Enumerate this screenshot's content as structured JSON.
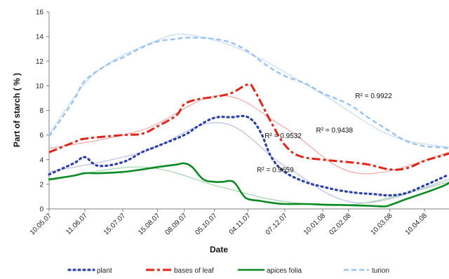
{
  "chart_data": {
    "type": "line",
    "xlabel": "Date",
    "ylabel": "Part of starch ( % )",
    "ylim": [
      0,
      16
    ],
    "y_ticks": [
      0,
      2,
      4,
      6,
      8,
      10,
      12,
      14,
      16
    ],
    "grid": false,
    "legend_position": "bottom",
    "x_tick_labels": [
      "10.05.07",
      "11.06.07",
      "15.07.07",
      "15.08.07",
      "08.09.07",
      "05.10.07",
      "04.11.07",
      "07.12.07",
      "10.01.08",
      "02.02.08",
      "10.03.08",
      "10.04.08"
    ],
    "x_tick_dates": [
      "2007-05-10",
      "2007-06-11",
      "2007-07-15",
      "2007-08-15",
      "2007-09-08",
      "2007-10-05",
      "2007-11-04",
      "2007-12-07",
      "2008-01-10",
      "2008-02-02",
      "2008-03-10",
      "2008-04-10"
    ],
    "x_domain": [
      "2007-05-10",
      "2008-05-02"
    ],
    "series": [
      {
        "name": "plant",
        "color": "#2a3fa8",
        "dash": "dotted",
        "x": [
          "2007-05-10",
          "2007-06-01",
          "2007-06-11",
          "2007-06-23",
          "2007-07-15",
          "2007-08-01",
          "2007-08-15",
          "2007-09-08",
          "2007-09-20",
          "2007-10-05",
          "2007-10-20",
          "2007-11-04",
          "2007-11-15",
          "2007-11-25",
          "2007-12-07",
          "2007-12-25",
          "2008-01-10",
          "2008-01-25",
          "2008-02-10",
          "2008-02-25",
          "2008-03-10",
          "2008-03-25",
          "2008-04-10",
          "2008-04-25",
          "2008-05-02"
        ],
        "values": [
          2.8,
          3.7,
          4.2,
          3.5,
          3.8,
          4.6,
          5.1,
          6.0,
          6.7,
          7.4,
          7.45,
          7.45,
          6.3,
          4.2,
          3.0,
          2.2,
          1.8,
          1.5,
          1.3,
          1.2,
          1.1,
          1.3,
          1.9,
          2.5,
          2.8
        ],
        "trend_r2_label": "R² = 0.9659"
      },
      {
        "name": "bases of leaf",
        "color": "#e02418",
        "dash": "dashdot",
        "x": [
          "2007-05-10",
          "2007-06-01",
          "2007-06-11",
          "2007-07-15",
          "2007-08-01",
          "2007-08-15",
          "2007-09-01",
          "2007-09-08",
          "2007-09-20",
          "2007-10-05",
          "2007-10-20",
          "2007-11-04",
          "2007-11-10",
          "2007-11-25",
          "2007-12-07",
          "2007-12-20",
          "2008-01-10",
          "2008-02-02",
          "2008-02-20",
          "2008-03-10",
          "2008-03-25",
          "2008-04-10",
          "2008-04-25",
          "2008-05-02"
        ],
        "values": [
          4.6,
          5.4,
          5.7,
          6.0,
          6.1,
          6.7,
          7.6,
          8.5,
          8.9,
          9.1,
          9.4,
          10.1,
          9.6,
          7.0,
          5.2,
          4.3,
          4.0,
          3.8,
          3.6,
          3.2,
          3.3,
          3.9,
          4.3,
          4.5
        ],
        "trend_r2_label": "R² = 0.9532"
      },
      {
        "name": "apices folia",
        "color": "#0a8a22",
        "dash": "solid",
        "x": [
          "2007-05-10",
          "2007-06-01",
          "2007-06-11",
          "2007-06-23",
          "2007-07-15",
          "2007-08-01",
          "2007-08-15",
          "2007-09-01",
          "2007-09-08",
          "2007-09-15",
          "2007-09-25",
          "2007-10-05",
          "2007-10-12",
          "2007-10-22",
          "2007-10-30",
          "2007-11-04",
          "2007-11-15",
          "2007-11-25",
          "2007-12-07",
          "2007-12-25",
          "2008-01-10",
          "2008-02-02",
          "2008-02-20",
          "2008-03-05",
          "2008-03-10",
          "2008-03-25",
          "2008-04-10",
          "2008-04-25",
          "2008-05-02"
        ],
        "values": [
          2.4,
          2.7,
          2.9,
          2.9,
          3.0,
          3.2,
          3.4,
          3.6,
          3.7,
          3.4,
          2.4,
          2.2,
          2.2,
          2.2,
          1.2,
          0.8,
          0.65,
          0.5,
          0.4,
          0.4,
          0.35,
          0.3,
          0.25,
          0.2,
          0.3,
          0.8,
          1.3,
          1.8,
          2.1
        ],
        "trend_r2_label": "R² = 0.9438"
      },
      {
        "name": "turion",
        "color": "#9cc2ee",
        "dash": "dashed",
        "x": [
          "2007-05-10",
          "2007-06-01",
          "2007-06-11",
          "2007-07-01",
          "2007-07-15",
          "2007-08-01",
          "2007-08-15",
          "2007-09-01",
          "2007-09-08",
          "2007-09-20",
          "2007-10-05",
          "2007-10-20",
          "2007-11-04",
          "2007-11-20",
          "2007-12-07",
          "2007-12-25",
          "2008-01-10",
          "2008-02-02",
          "2008-02-20",
          "2008-03-10",
          "2008-03-25",
          "2008-04-10",
          "2008-04-25",
          "2008-05-02"
        ],
        "values": [
          5.9,
          8.8,
          10.4,
          11.7,
          12.3,
          13.1,
          13.6,
          13.8,
          13.9,
          13.9,
          13.8,
          13.5,
          12.8,
          11.7,
          10.8,
          10.2,
          9.4,
          8.5,
          7.4,
          6.3,
          5.5,
          5.1,
          5.0,
          4.9
        ],
        "trend_r2_label": "R² = 0.9922"
      }
    ],
    "trendlines": [
      {
        "series": "plant",
        "color": "#b8bfe6",
        "x": [
          "2007-05-10",
          "2007-08-01",
          "2007-10-10",
          "2007-12-07",
          "2008-02-10",
          "2008-05-02"
        ],
        "values": [
          3.0,
          4.6,
          7.0,
          3.5,
          0.5,
          2.4
        ]
      },
      {
        "series": "bases of leaf",
        "color": "#f2a8a4",
        "x": [
          "2007-05-10",
          "2007-08-01",
          "2007-10-10",
          "2007-12-07",
          "2008-02-10",
          "2008-05-02"
        ],
        "values": [
          4.9,
          6.4,
          9.2,
          6.6,
          2.9,
          4.6
        ]
      },
      {
        "series": "apices folia",
        "color": "#9fd4a8",
        "x": [
          "2007-05-10",
          "2007-08-01",
          "2007-10-10",
          "2007-12-07",
          "2008-02-10",
          "2008-05-02"
        ],
        "values": [
          2.3,
          3.4,
          1.8,
          0.6,
          0.4,
          2.2
        ]
      },
      {
        "series": "turion",
        "color": "#c3dbf5",
        "x": [
          "2007-05-10",
          "2007-06-20",
          "2007-08-15",
          "2007-09-15",
          "2007-11-04",
          "2008-01-10",
          "2008-03-10",
          "2008-05-02"
        ],
        "values": [
          6.1,
          11.0,
          13.7,
          14.1,
          12.7,
          9.3,
          6.0,
          5.0
        ]
      }
    ],
    "r2_labels": [
      {
        "text": "R² = 0.9922",
        "x": "2008-02-08",
        "y": 9.0
      },
      {
        "text": "R² = 0.9438",
        "x": "2008-01-04",
        "y": 6.2
      },
      {
        "text": "R² = 0.9532",
        "x": "2007-11-19",
        "y": 5.75
      },
      {
        "text": "R² = 0.9659",
        "x": "2007-11-12",
        "y": 3.0
      }
    ]
  }
}
